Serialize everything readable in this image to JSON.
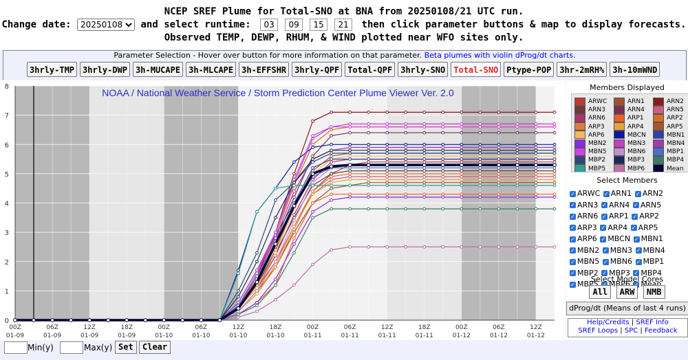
{
  "header": {
    "line1": "NCEP SREF Plume for Total-SNO at BNA from 20250108/21 UTC run.",
    "change_date_label": "Change date:",
    "date_value": "20250108",
    "select_runtime_label": "and select runtime:",
    "runtimes": [
      "03",
      "09",
      "15",
      "21"
    ],
    "line2_tail": "then click parameter buttons & map to display forecasts.",
    "line3": "Observed TEMP, DEWP, RHUM, & WIND plotted near WFO sites only."
  },
  "params": {
    "title": "Parameter Selection - Hover over button for more information on that parameter.",
    "link": "Beta plumes with violin dProg/dt charts.",
    "buttons": [
      "3hrly-TMP",
      "3hrly-DWP",
      "3h-MUCAPE",
      "3h-MLCAPE",
      "3h-EFFSHR",
      "3hrly-QPF",
      "Total-QPF",
      "3hrly-SNO",
      "Total-SNO",
      "Ptype-POP",
      "3hr-2mRH%",
      "3h-10mWND"
    ],
    "active": "Total-SNO"
  },
  "chart_data": {
    "type": "line",
    "title": "NOAA / National Weather Service / Storm Prediction Center Plume Viewer Ver. 2.0",
    "xlabel": "",
    "ylabel": "",
    "ylim": [
      0,
      8
    ],
    "yticks": [
      "0",
      "1",
      "2",
      "3",
      "4",
      "5",
      "6",
      "7",
      "8"
    ],
    "xlim": [
      0,
      87
    ],
    "x_hours": [
      0,
      3,
      6,
      9,
      12,
      15,
      18,
      21,
      24,
      27,
      30,
      33,
      36,
      39,
      42,
      45,
      48,
      51,
      54,
      57,
      60,
      63,
      66,
      69,
      72,
      75,
      78,
      81,
      84,
      87
    ],
    "xticks": [
      {
        "h": 0,
        "l1": "00Z",
        "l2": "01-09"
      },
      {
        "h": 6,
        "l1": "06Z",
        "l2": "01-09"
      },
      {
        "h": 12,
        "l1": "12Z",
        "l2": "01-09"
      },
      {
        "h": 18,
        "l1": "18Z",
        "l2": "01-09"
      },
      {
        "h": 24,
        "l1": "00Z",
        "l2": "01-10"
      },
      {
        "h": 30,
        "l1": "06Z",
        "l2": "01-10"
      },
      {
        "h": 36,
        "l1": "12Z",
        "l2": "01-10"
      },
      {
        "h": 42,
        "l1": "18Z",
        "l2": "01-10"
      },
      {
        "h": 48,
        "l1": "00Z",
        "l2": "01-11"
      },
      {
        "h": 54,
        "l1": "06Z",
        "l2": "01-11"
      },
      {
        "h": 60,
        "l1": "12Z",
        "l2": "01-11"
      },
      {
        "h": 66,
        "l1": "18Z",
        "l2": "01-11"
      },
      {
        "h": 72,
        "l1": "00Z",
        "l2": "01-12"
      },
      {
        "h": 78,
        "l1": "06Z",
        "l2": "01-12"
      },
      {
        "h": 84,
        "l1": "12Z",
        "l2": "01-12"
      }
    ],
    "night_bands": [
      [
        0,
        12
      ],
      [
        24,
        36
      ],
      [
        72,
        84
      ]
    ],
    "light_bands": [
      [
        12,
        24
      ],
      [
        60,
        72
      ]
    ],
    "current_time_hour": 3,
    "series": [
      {
        "name": "ARWC",
        "color": "#c0392b",
        "final": 5.4,
        "ramp": [
          0,
          0.4,
          1.1,
          2.0,
          3.2,
          4.4,
          5.0,
          5.3
        ]
      },
      {
        "name": "ARN1",
        "color": "#a0522d",
        "final": 4.7,
        "ramp": [
          0,
          0.3,
          1.0,
          1.8,
          3.0,
          4.0,
          4.5,
          4.6
        ]
      },
      {
        "name": "ARN2",
        "color": "#8b1a1a",
        "final": 7.1,
        "ramp": [
          0,
          0.5,
          1.5,
          3.0,
          5.0,
          6.8,
          7.1,
          7.1
        ]
      },
      {
        "name": "ARN3",
        "color": "#6b3a3a",
        "final": 5.1,
        "ramp": [
          0,
          0.4,
          1.2,
          2.3,
          3.5,
          4.6,
          5.0,
          5.1
        ]
      },
      {
        "name": "ARN4",
        "color": "#7b2d52",
        "final": 6.4,
        "ramp": [
          0,
          0.5,
          1.4,
          2.7,
          4.2,
          5.6,
          6.3,
          6.4
        ]
      },
      {
        "name": "ARN5",
        "color": "#d05a8a",
        "final": 4.9,
        "ramp": [
          0,
          0.3,
          1.0,
          2.0,
          3.2,
          4.3,
          4.8,
          4.9
        ]
      },
      {
        "name": "ARN6",
        "color": "#b03070",
        "final": 5.5,
        "ramp": [
          0,
          0.4,
          1.1,
          2.2,
          3.6,
          4.8,
          5.4,
          5.5
        ]
      },
      {
        "name": "ARP1",
        "color": "#e8622a",
        "final": 4.3,
        "ramp": [
          0,
          0.2,
          0.6,
          1.2,
          2.8,
          4.0,
          4.3,
          4.3
        ]
      },
      {
        "name": "ARP2",
        "color": "#d2701e",
        "final": 6.6,
        "ramp": [
          0,
          0.5,
          1.4,
          2.9,
          4.6,
          6.0,
          6.5,
          6.6
        ]
      },
      {
        "name": "ARP3",
        "color": "#e07a3a",
        "final": 5.0,
        "ramp": [
          0,
          0.3,
          0.9,
          1.8,
          3.1,
          4.4,
          4.9,
          5.0
        ]
      },
      {
        "name": "ARP4",
        "color": "#e8a23a",
        "final": 4.8,
        "ramp": [
          0,
          0.3,
          0.9,
          1.9,
          3.2,
          4.3,
          4.7,
          4.8
        ]
      },
      {
        "name": "ARP5",
        "color": "#a7582b",
        "final": 5.7,
        "ramp": [
          0,
          0.4,
          1.2,
          2.4,
          3.9,
          5.1,
          5.6,
          5.7
        ]
      },
      {
        "name": "ARP6",
        "color": "#f4b860",
        "final": 5.6,
        "ramp": [
          0,
          0.4,
          1.1,
          2.3,
          3.8,
          5.0,
          5.5,
          5.6
        ]
      },
      {
        "name": "MBCN",
        "color": "#0a1aa0",
        "final": 6.0,
        "ramp": [
          0,
          1.7,
          3.7,
          4.5,
          5.4,
          5.9,
          6.0,
          6.0
        ]
      },
      {
        "name": "MBN1",
        "color": "#3040a8",
        "final": 5.5,
        "ramp": [
          0,
          0.6,
          1.7,
          2.9,
          4.0,
          5.2,
          5.5,
          5.5
        ]
      },
      {
        "name": "MBN2",
        "color": "#8a2be2",
        "final": 4.2,
        "ramp": [
          0,
          0.2,
          0.6,
          1.4,
          2.6,
          3.7,
          4.1,
          4.2
        ]
      },
      {
        "name": "MBN3",
        "color": "#c040c0",
        "final": 6.7,
        "ramp": [
          0,
          0.6,
          1.7,
          3.0,
          4.7,
          6.2,
          6.6,
          6.7
        ]
      },
      {
        "name": "MBN4",
        "color": "#9d3bb0",
        "final": 5.9,
        "ramp": [
          0,
          0.5,
          1.5,
          2.8,
          4.4,
          5.5,
          5.8,
          5.9
        ]
      },
      {
        "name": "MBN5",
        "color": "#d040e8",
        "final": 6.6,
        "ramp": [
          0,
          0.5,
          1.6,
          3.0,
          4.8,
          6.3,
          6.6,
          6.6
        ]
      },
      {
        "name": "MBN6",
        "color": "#c090d0",
        "final": 5.3,
        "ramp": [
          0,
          0.3,
          1.0,
          2.0,
          3.4,
          4.7,
          5.2,
          5.3
        ]
      },
      {
        "name": "MBP1",
        "color": "#4870c8",
        "final": 5.2,
        "ramp": [
          0,
          0.5,
          1.5,
          2.6,
          3.9,
          4.9,
          5.2,
          5.2
        ]
      },
      {
        "name": "MBP2",
        "color": "#2a4a78",
        "final": 5.7,
        "ramp": [
          0,
          1.0,
          2.3,
          4.1,
          4.7,
          5.4,
          5.7,
          5.7
        ]
      },
      {
        "name": "MBP3",
        "color": "#1a2a58",
        "final": 5.8,
        "ramp": [
          0,
          0.8,
          2.0,
          3.5,
          4.7,
          5.5,
          5.8,
          5.8
        ]
      },
      {
        "name": "MBP4",
        "color": "#3a7a6a",
        "final": 3.8,
        "ramp": [
          0,
          0.2,
          0.5,
          1.2,
          2.3,
          3.5,
          3.8,
          3.8
        ]
      },
      {
        "name": "MBP5",
        "color": "#30a090",
        "final": 4.6,
        "ramp": [
          0,
          1.6,
          3.7,
          4.5,
          4.6,
          4.6,
          4.6,
          4.6
        ]
      },
      {
        "name": "MBP6",
        "color": "#c070a8",
        "final": 2.5,
        "ramp": [
          0,
          0.1,
          0.3,
          0.7,
          1.2,
          1.9,
          2.4,
          2.5
        ]
      },
      {
        "name": "Mean",
        "color": "#000033",
        "final": 5.3,
        "ramp": [
          0,
          0.4,
          1.3,
          2.6,
          3.9,
          5.0,
          5.25,
          5.3
        ]
      }
    ]
  },
  "sidebar": {
    "members_displayed_title": "Members Displayed",
    "legend": [
      "ARWC",
      "ARN1",
      "ARN2",
      "ARN3",
      "ARN4",
      "ARN5",
      "ARN6",
      "ARP1",
      "ARP2",
      "ARP3",
      "ARP4",
      "ARP5",
      "ARP6",
      "MBCN",
      "MBN1",
      "MBN2",
      "MBN3",
      "MBN4",
      "MBN5",
      "MBN6",
      "MBP1",
      "MBP2",
      "MBP3",
      "MBP4",
      "MBP5",
      "MBP6",
      "Mean"
    ],
    "select_members_title": "Select Members",
    "select_members": [
      "ARWC",
      "ARN1",
      "ARN2",
      "ARN3",
      "ARN4",
      "ARN5",
      "ARN6",
      "ARP1",
      "ARP2",
      "ARP3",
      "ARP4",
      "ARP5",
      "ARP6",
      "MBCN",
      "MBN1",
      "MBN2",
      "MBN3",
      "MBN4",
      "MBN5",
      "MBN6",
      "MBP1",
      "MBP2",
      "MBP3",
      "MBP4",
      "MBP5",
      "MBP6",
      "Mean"
    ],
    "select_cores_title": "Select Model Cores",
    "cores": [
      "All",
      "ARW",
      "NMB"
    ],
    "dprog": "dProg/dt (Means of last 4 runs)",
    "links": {
      "help": "Help/Credits",
      "sref_info": "SREF Info",
      "sref_loops": "SREF Loops",
      "spc": "SPC",
      "feedback": "Feedback"
    }
  },
  "bottom": {
    "min_label": "Min(y)",
    "max_label": "Max(y)",
    "set": "Set",
    "clear": "Clear"
  }
}
